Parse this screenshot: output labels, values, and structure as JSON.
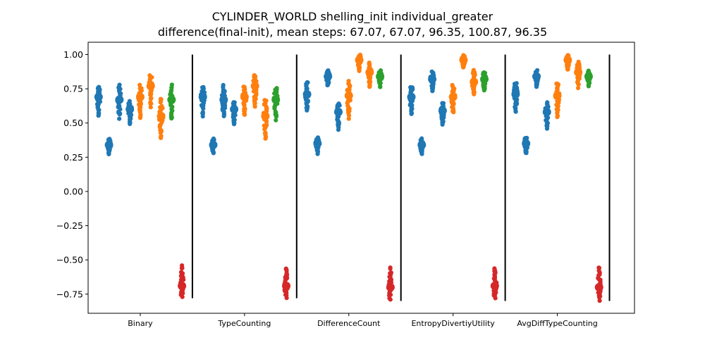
{
  "chart_data": {
    "type": "scatter",
    "title": "CYLINDER_WORLD shelling_init individual_greater",
    "subtitle": "difference(final-init), mean steps: 67.07, 67.07, 96.35, 100.87, 96.35",
    "xlabel": "",
    "ylabel": "",
    "ylim": [
      -0.89,
      1.09
    ],
    "yticks": [
      -0.75,
      -0.5,
      -0.25,
      0.0,
      0.25,
      0.5,
      0.75,
      1.0
    ],
    "ytick_labels": [
      "−0.75",
      "−0.50",
      "−0.25",
      "0.00",
      "0.25",
      "0.50",
      "0.75",
      "1.00"
    ],
    "categories": [
      "Binary",
      "TypeCounting",
      "DifferenceCount",
      "EntropyDivertiyUtility",
      "AvgDiffTypeCounting"
    ],
    "colors": {
      "blue": "#1f77b4",
      "orange": "#ff7f0e",
      "green": "#2ca02c",
      "red": "#d62728",
      "separator": "#000000"
    },
    "separator_x": [
      0.5,
      1.5,
      2.5,
      3.5,
      4.5
    ],
    "xlim": [
      -0.5,
      4.74
    ],
    "strips": [
      {
        "group": 0,
        "color": "blue",
        "x": -0.4,
        "mean": 0.69,
        "min": 0.54,
        "max": 0.78
      },
      {
        "group": 0,
        "color": "blue",
        "x": -0.3,
        "mean": 0.34,
        "min": 0.27,
        "max": 0.39
      },
      {
        "group": 0,
        "color": "blue",
        "x": -0.2,
        "mean": 0.67,
        "min": 0.53,
        "max": 0.78
      },
      {
        "group": 0,
        "color": "blue",
        "x": -0.1,
        "mean": 0.6,
        "min": 0.48,
        "max": 0.66
      },
      {
        "group": 0,
        "color": "orange",
        "x": 0.0,
        "mean": 0.69,
        "min": 0.53,
        "max": 0.78
      },
      {
        "group": 0,
        "color": "orange",
        "x": 0.1,
        "mean": 0.77,
        "min": 0.61,
        "max": 0.86
      },
      {
        "group": 0,
        "color": "orange",
        "x": 0.2,
        "mean": 0.55,
        "min": 0.37,
        "max": 0.69
      },
      {
        "group": 0,
        "color": "green",
        "x": 0.3,
        "mean": 0.67,
        "min": 0.52,
        "max": 0.78
      },
      {
        "group": 0,
        "color": "red",
        "x": 0.4,
        "mean": -0.69,
        "min": -0.78,
        "max": -0.54
      },
      {
        "group": 1,
        "color": "blue",
        "x": 0.6,
        "mean": 0.69,
        "min": 0.54,
        "max": 0.78
      },
      {
        "group": 1,
        "color": "blue",
        "x": 0.7,
        "mean": 0.34,
        "min": 0.27,
        "max": 0.39
      },
      {
        "group": 1,
        "color": "blue",
        "x": 0.8,
        "mean": 0.67,
        "min": 0.53,
        "max": 0.78
      },
      {
        "group": 1,
        "color": "blue",
        "x": 0.9,
        "mean": 0.6,
        "min": 0.48,
        "max": 0.66
      },
      {
        "group": 1,
        "color": "orange",
        "x": 1.0,
        "mean": 0.69,
        "min": 0.53,
        "max": 0.78
      },
      {
        "group": 1,
        "color": "orange",
        "x": 1.1,
        "mean": 0.77,
        "min": 0.61,
        "max": 0.86
      },
      {
        "group": 1,
        "color": "orange",
        "x": 1.2,
        "mean": 0.55,
        "min": 0.37,
        "max": 0.69
      },
      {
        "group": 1,
        "color": "green",
        "x": 1.3,
        "mean": 0.67,
        "min": 0.52,
        "max": 0.78
      },
      {
        "group": 1,
        "color": "red",
        "x": 1.4,
        "mean": -0.69,
        "min": -0.78,
        "max": -0.54
      },
      {
        "group": 2,
        "color": "blue",
        "x": 1.6,
        "mean": 0.71,
        "min": 0.57,
        "max": 0.81
      },
      {
        "group": 2,
        "color": "blue",
        "x": 1.7,
        "mean": 0.35,
        "min": 0.27,
        "max": 0.4
      },
      {
        "group": 2,
        "color": "blue",
        "x": 1.8,
        "mean": 0.84,
        "min": 0.76,
        "max": 0.89
      },
      {
        "group": 2,
        "color": "blue",
        "x": 1.9,
        "mean": 0.58,
        "min": 0.45,
        "max": 0.66
      },
      {
        "group": 2,
        "color": "orange",
        "x": 2.0,
        "mean": 0.7,
        "min": 0.53,
        "max": 0.81
      },
      {
        "group": 2,
        "color": "orange",
        "x": 2.1,
        "mean": 0.96,
        "min": 0.88,
        "max": 1.0
      },
      {
        "group": 2,
        "color": "orange",
        "x": 2.2,
        "mean": 0.87,
        "min": 0.75,
        "max": 0.95
      },
      {
        "group": 2,
        "color": "green",
        "x": 2.3,
        "mean": 0.84,
        "min": 0.76,
        "max": 0.89
      },
      {
        "group": 2,
        "color": "red",
        "x": 2.4,
        "mean": -0.7,
        "min": -0.8,
        "max": -0.54
      },
      {
        "group": 3,
        "color": "blue",
        "x": 2.6,
        "mean": 0.69,
        "min": 0.54,
        "max": 0.78
      },
      {
        "group": 3,
        "color": "blue",
        "x": 2.7,
        "mean": 0.34,
        "min": 0.27,
        "max": 0.39
      },
      {
        "group": 3,
        "color": "blue",
        "x": 2.8,
        "mean": 0.82,
        "min": 0.72,
        "max": 0.88
      },
      {
        "group": 3,
        "color": "blue",
        "x": 2.9,
        "mean": 0.59,
        "min": 0.48,
        "max": 0.66
      },
      {
        "group": 3,
        "color": "orange",
        "x": 3.0,
        "mean": 0.69,
        "min": 0.55,
        "max": 0.78
      },
      {
        "group": 3,
        "color": "orange",
        "x": 3.1,
        "mean": 0.96,
        "min": 0.9,
        "max": 1.0
      },
      {
        "group": 3,
        "color": "orange",
        "x": 3.2,
        "mean": 0.8,
        "min": 0.71,
        "max": 0.9
      },
      {
        "group": 3,
        "color": "green",
        "x": 3.3,
        "mean": 0.82,
        "min": 0.73,
        "max": 0.88
      },
      {
        "group": 3,
        "color": "red",
        "x": 3.4,
        "mean": -0.69,
        "min": -0.79,
        "max": -0.54
      },
      {
        "group": 4,
        "color": "blue",
        "x": 3.6,
        "mean": 0.71,
        "min": 0.57,
        "max": 0.81
      },
      {
        "group": 4,
        "color": "blue",
        "x": 3.7,
        "mean": 0.35,
        "min": 0.27,
        "max": 0.4
      },
      {
        "group": 4,
        "color": "blue",
        "x": 3.8,
        "mean": 0.84,
        "min": 0.76,
        "max": 0.89
      },
      {
        "group": 4,
        "color": "blue",
        "x": 3.9,
        "mean": 0.58,
        "min": 0.45,
        "max": 0.66
      },
      {
        "group": 4,
        "color": "orange",
        "x": 4.0,
        "mean": 0.7,
        "min": 0.53,
        "max": 0.81
      },
      {
        "group": 4,
        "color": "orange",
        "x": 4.1,
        "mean": 0.96,
        "min": 0.88,
        "max": 1.0
      },
      {
        "group": 4,
        "color": "orange",
        "x": 4.2,
        "mean": 0.87,
        "min": 0.75,
        "max": 0.95
      },
      {
        "group": 4,
        "color": "green",
        "x": 4.3,
        "mean": 0.84,
        "min": 0.76,
        "max": 0.89
      },
      {
        "group": 4,
        "color": "red",
        "x": 4.4,
        "mean": -0.7,
        "min": -0.8,
        "max": -0.54
      }
    ],
    "separators": [
      {
        "x": 0.5,
        "ymin": -0.78,
        "ymax": 1.0
      },
      {
        "x": 1.5,
        "ymin": -0.78,
        "ymax": 1.0
      },
      {
        "x": 2.5,
        "ymin": -0.8,
        "ymax": 1.0
      },
      {
        "x": 3.5,
        "ymin": -0.8,
        "ymax": 1.0
      },
      {
        "x": 4.5,
        "ymin": -0.8,
        "ymax": 1.0
      }
    ],
    "grid": false,
    "legend": "none"
  }
}
